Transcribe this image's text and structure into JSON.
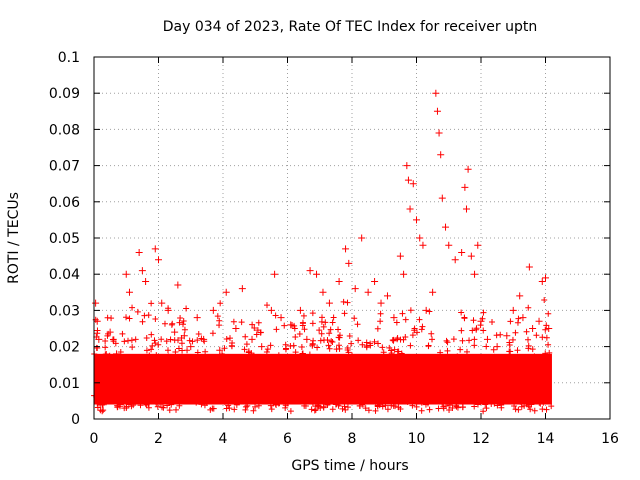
{
  "chart_data": {
    "type": "scatter",
    "title": "Day 034 of 2023, Rate Of TEC Index for receiver uptn",
    "xlabel": "GPS time / hours",
    "ylabel": "ROTI / TECUs",
    "xlim": [
      0,
      16
    ],
    "ylim": [
      0,
      0.1
    ],
    "xticks": [
      0,
      2,
      4,
      6,
      8,
      10,
      12,
      14,
      16
    ],
    "yticks": [
      0,
      0.01,
      0.02,
      0.03,
      0.04,
      0.05,
      0.06,
      0.07,
      0.08,
      0.09,
      0.1
    ],
    "grid": true,
    "marker": "+",
    "color": "#ff0000",
    "series": [
      {
        "name": "ROTI",
        "x": [
          0.05,
          0.1,
          0.15,
          0.3,
          0.5,
          0.7,
          0.9,
          1.0,
          1.1,
          1.4,
          1.5,
          1.6,
          1.9,
          2.0,
          2.1,
          2.3,
          2.5,
          2.6,
          2.8,
          3.0,
          3.2,
          3.4,
          3.7,
          3.9,
          4.1,
          4.4,
          4.6,
          4.9,
          5.2,
          5.5,
          5.6,
          5.8,
          6.1,
          6.4,
          6.6,
          6.7,
          6.9,
          7.1,
          7.3,
          7.6,
          7.8,
          7.9,
          8.1,
          8.3,
          8.5,
          8.7,
          8.9,
          9.1,
          9.3,
          9.5,
          9.6,
          9.7,
          9.75,
          9.8,
          9.9,
          10.0,
          10.1,
          10.2,
          10.3,
          10.5,
          10.6,
          10.65,
          10.7,
          10.75,
          10.8,
          10.9,
          11.0,
          11.2,
          11.4,
          11.5,
          11.55,
          11.6,
          11.7,
          11.8,
          11.9,
          12.0,
          12.2,
          12.5,
          12.8,
          13.0,
          13.2,
          13.3,
          13.5,
          13.6,
          13.8,
          13.9,
          14.0,
          14.1
        ],
        "y": [
          0.032,
          0.027,
          0.022,
          0.012,
          0.024,
          0.018,
          0.016,
          0.04,
          0.035,
          0.046,
          0.041,
          0.038,
          0.047,
          0.044,
          0.032,
          0.03,
          0.024,
          0.037,
          0.023,
          0.02,
          0.028,
          0.022,
          0.03,
          0.019,
          0.035,
          0.025,
          0.036,
          0.022,
          0.02,
          0.03,
          0.04,
          0.028,
          0.026,
          0.03,
          0.022,
          0.041,
          0.04,
          0.035,
          0.032,
          0.038,
          0.047,
          0.043,
          0.036,
          0.05,
          0.035,
          0.038,
          0.032,
          0.034,
          0.028,
          0.045,
          0.04,
          0.07,
          0.066,
          0.058,
          0.065,
          0.055,
          0.05,
          0.048,
          0.03,
          0.035,
          0.09,
          0.085,
          0.079,
          0.073,
          0.061,
          0.053,
          0.048,
          0.044,
          0.046,
          0.064,
          0.058,
          0.069,
          0.045,
          0.04,
          0.048,
          0.027,
          0.022,
          0.02,
          0.023,
          0.03,
          0.034,
          0.028,
          0.042,
          0.025,
          0.027,
          0.038,
          0.039,
          0.025
        ]
      }
    ],
    "background_band": [
      {
        "x_from": 0,
        "x_to": 14.2,
        "y_from": 0.004,
        "y_to": 0.018
      }
    ]
  }
}
